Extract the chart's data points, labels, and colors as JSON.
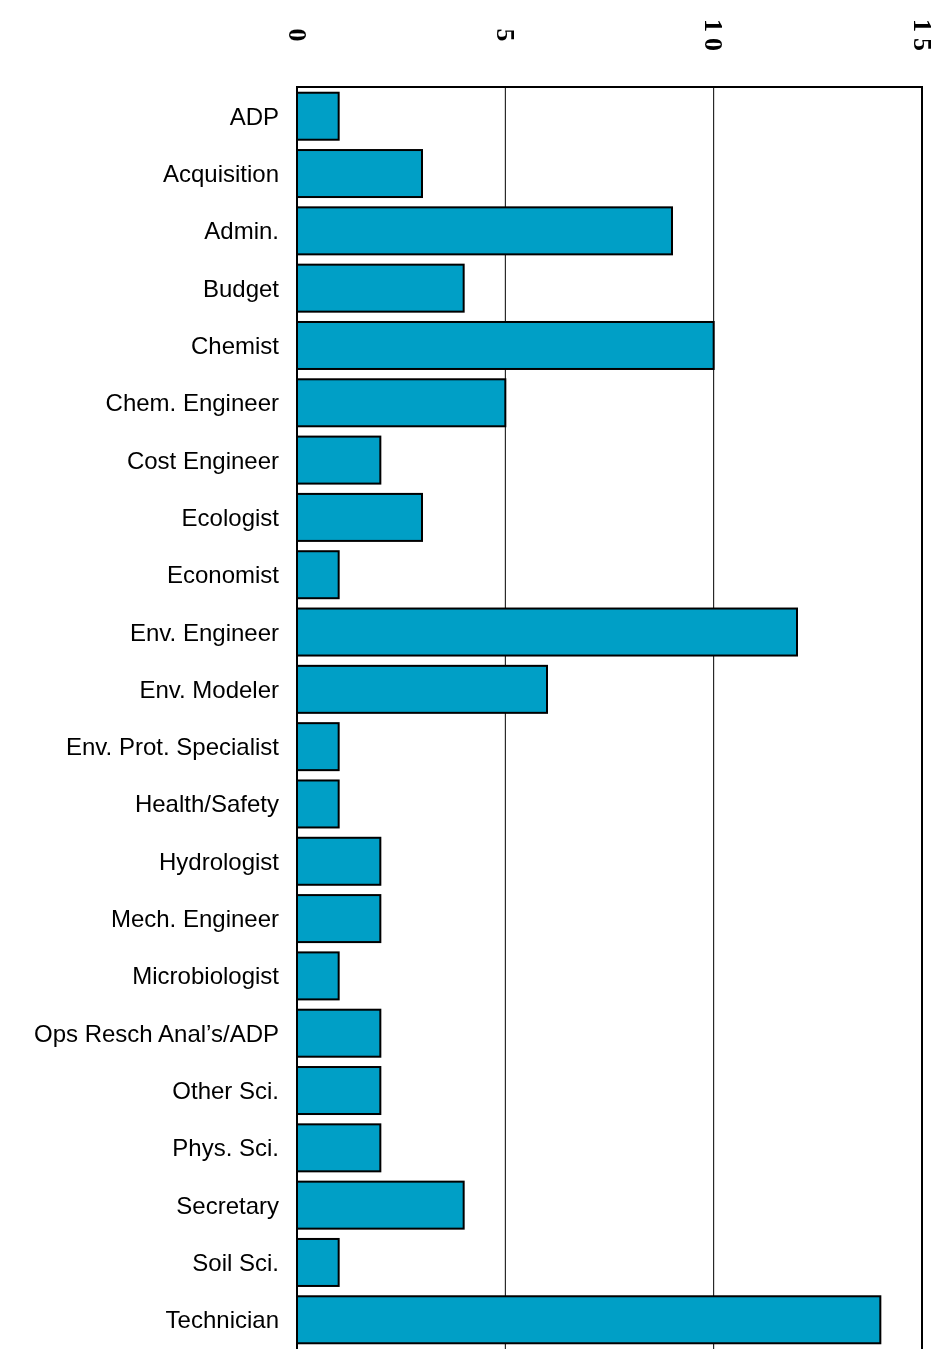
{
  "chart_data": {
    "type": "bar",
    "orientation": "horizontal",
    "categories": [
      "ADP",
      "Acquisition",
      "Admin.",
      "Budget",
      "Chemist",
      "Chem. Engineer",
      "Cost Engineer",
      "Ecologist",
      "Economist",
      "Env. Engineer",
      "Env. Modeler",
      "Env. Prot. Specialist",
      "Health/Safety",
      "Hydrologist",
      "Mech. Engineer",
      "Microbiologist",
      "Ops Resch Anal’s/ADP",
      "Other Sci.",
      "Phys. Sci.",
      "Secretary",
      "Soil Sci.",
      "Technician"
    ],
    "values": [
      1,
      3,
      9,
      4,
      10,
      5,
      2,
      3,
      1,
      12,
      6,
      1,
      1,
      2,
      2,
      1,
      2,
      2,
      2,
      4,
      1,
      14
    ],
    "color": "#009fc6",
    "xlim": [
      0,
      15
    ],
    "xticks": [
      0,
      5,
      10,
      15
    ],
    "grid": "x"
  }
}
